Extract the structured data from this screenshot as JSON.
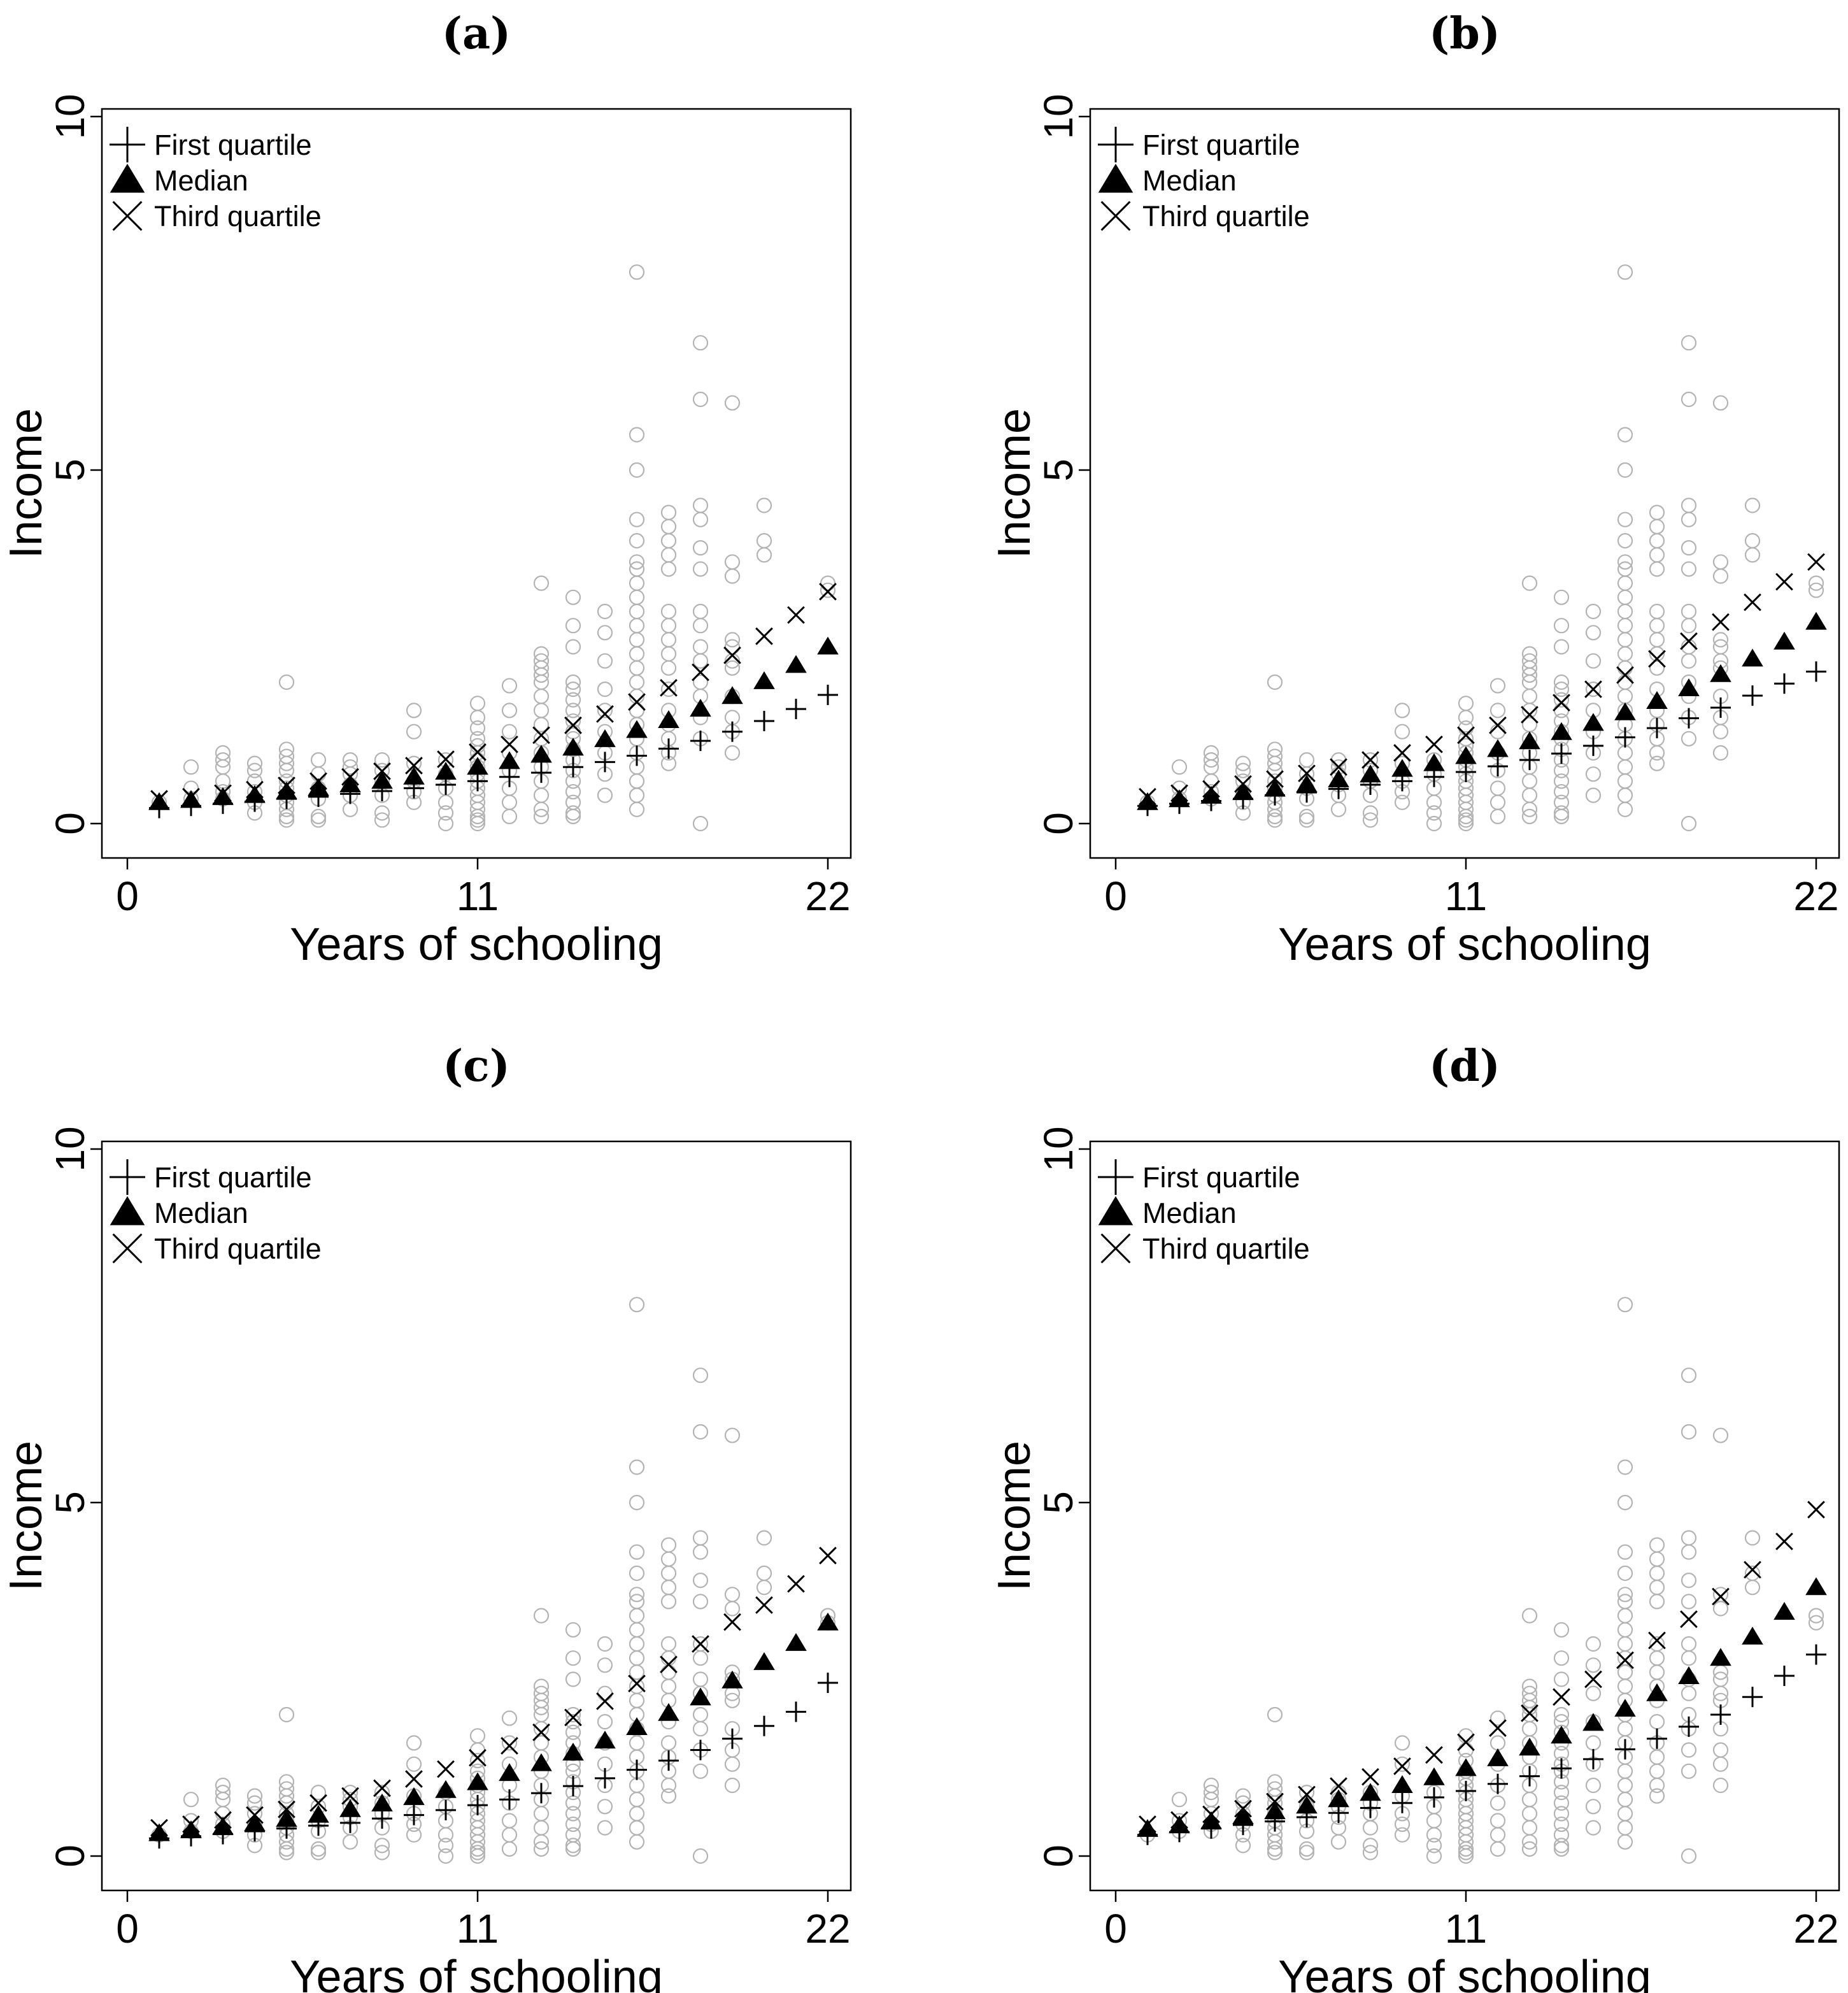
{
  "chart_data": {
    "type": "scatter",
    "xlabel": "Years of schooling",
    "ylabel": "Income",
    "xlim": [
      0,
      22
    ],
    "ylim": [
      0,
      10
    ],
    "xticks": [
      {
        "value": 0,
        "label": "0"
      },
      {
        "value": 11,
        "label": "11"
      },
      {
        "value": 22,
        "label": "22"
      }
    ],
    "yticks": [
      {
        "value": 0,
        "label": "0"
      },
      {
        "value": 5,
        "label": "5"
      },
      {
        "value": 10,
        "label": "10"
      }
    ],
    "legend": {
      "position": "top-left",
      "entries": [
        {
          "label": "First quartile",
          "marker": "plus"
        },
        {
          "label": "Median",
          "marker": "triangle"
        },
        {
          "label": "Third quartile",
          "marker": "cross"
        }
      ]
    },
    "observed": [
      {
        "x": 1,
        "y": [
          0.3
        ]
      },
      {
        "x": 2,
        "y": [
          0.8,
          0.5,
          0.35
        ]
      },
      {
        "x": 3,
        "y": [
          1.0,
          0.9,
          0.8,
          0.6,
          0.45,
          0.35
        ]
      },
      {
        "x": 4,
        "y": [
          0.85,
          0.75,
          0.6,
          0.45,
          0.3,
          0.15
        ]
      },
      {
        "x": 5,
        "y": [
          2.0,
          1.05,
          0.95,
          0.85,
          0.75,
          0.6,
          0.5,
          0.4,
          0.3,
          0.2,
          0.1,
          0.05
        ]
      },
      {
        "x": 6,
        "y": [
          0.9,
          0.7,
          0.5,
          0.35,
          0.1,
          0.05
        ]
      },
      {
        "x": 7,
        "y": [
          0.9,
          0.8,
          0.7,
          0.55,
          0.4,
          0.2
        ]
      },
      {
        "x": 8,
        "y": [
          0.9,
          0.75,
          0.6,
          0.4,
          0.15,
          0.05
        ]
      },
      {
        "x": 9,
        "y": [
          1.6,
          1.3,
          0.85,
          0.6,
          0.45,
          0.3
        ]
      },
      {
        "x": 10,
        "y": [
          0.9,
          0.7,
          0.5,
          0.3,
          0.15,
          0.0
        ]
      },
      {
        "x": 11,
        "y": [
          1.7,
          1.5,
          1.35,
          1.2,
          1.1,
          1.0,
          0.9,
          0.8,
          0.7,
          0.6,
          0.5,
          0.4,
          0.3,
          0.2,
          0.1,
          0.05,
          0.0
        ]
      },
      {
        "x": 12,
        "y": [
          1.95,
          1.6,
          1.3,
          1.0,
          0.75,
          0.5,
          0.3,
          0.1
        ]
      },
      {
        "x": 13,
        "y": [
          3.4,
          2.4,
          2.3,
          2.2,
          2.1,
          2.0,
          1.8,
          1.6,
          1.4,
          1.2,
          1.0,
          0.8,
          0.6,
          0.4,
          0.2,
          0.1
        ]
      },
      {
        "x": 14,
        "y": [
          3.2,
          2.8,
          2.5,
          2.0,
          1.9,
          1.75,
          1.6,
          1.45,
          1.3,
          1.2,
          1.05,
          0.9,
          0.75,
          0.6,
          0.45,
          0.3,
          0.15,
          0.1
        ]
      },
      {
        "x": 15,
        "y": [
          3.0,
          2.7,
          2.3,
          1.9,
          1.6,
          1.3,
          1.0,
          0.7,
          0.4
        ]
      },
      {
        "x": 16,
        "y": [
          7.8,
          5.5,
          5.0,
          4.3,
          4.0,
          3.7,
          3.6,
          3.4,
          3.2,
          3.0,
          2.8,
          2.6,
          2.4,
          2.2,
          2.0,
          1.8,
          1.6,
          1.4,
          1.2,
          1.0,
          0.8,
          0.6,
          0.4,
          0.2
        ]
      },
      {
        "x": 17,
        "y": [
          4.4,
          4.2,
          4.0,
          3.8,
          3.6,
          3.0,
          2.8,
          2.6,
          2.4,
          2.2,
          1.9,
          1.6,
          1.4,
          1.2,
          1.0,
          0.85
        ]
      },
      {
        "x": 18,
        "y": [
          6.8,
          6.0,
          4.5,
          4.3,
          3.9,
          3.6,
          3.0,
          2.8,
          2.5,
          2.3,
          2.0,
          1.8,
          1.5,
          1.2,
          0.0
        ]
      },
      {
        "x": 19,
        "y": [
          5.95,
          3.7,
          3.5,
          2.6,
          2.5,
          2.3,
          2.2,
          1.8,
          1.5,
          1.3,
          1.0
        ]
      },
      {
        "x": 20,
        "y": [
          4.5,
          4.0,
          3.8
        ]
      },
      {
        "x": 22,
        "y": [
          3.4,
          3.3
        ]
      }
    ],
    "panels": [
      {
        "title": "(a)",
        "x": [
          1,
          2,
          3,
          4,
          5,
          6,
          7,
          8,
          9,
          10,
          11,
          12,
          13,
          14,
          15,
          16,
          17,
          18,
          19,
          20,
          21,
          22
        ],
        "series": [
          {
            "name": "First quartile",
            "marker": "plus",
            "values": [
              0.22,
              0.25,
              0.28,
              0.31,
              0.35,
              0.38,
              0.42,
              0.46,
              0.5,
              0.55,
              0.6,
              0.66,
              0.72,
              0.8,
              0.87,
              0.96,
              1.06,
              1.17,
              1.3,
              1.45,
              1.62,
              1.82
            ]
          },
          {
            "name": "Median",
            "marker": "triangle",
            "values": [
              0.3,
              0.33,
              0.37,
              0.4,
              0.45,
              0.5,
              0.55,
              0.6,
              0.66,
              0.73,
              0.8,
              0.88,
              0.97,
              1.07,
              1.19,
              1.32,
              1.46,
              1.62,
              1.8,
              2.01,
              2.24,
              2.5
            ]
          },
          {
            "name": "Third quartile",
            "marker": "cross",
            "values": [
              0.35,
              0.38,
              0.43,
              0.48,
              0.54,
              0.6,
              0.66,
              0.74,
              0.82,
              0.91,
              1.01,
              1.12,
              1.25,
              1.39,
              1.55,
              1.72,
              1.92,
              2.14,
              2.38,
              2.65,
              2.95,
              3.28
            ]
          }
        ]
      },
      {
        "title": "(b)",
        "x": [
          1,
          2,
          3,
          4,
          5,
          6,
          7,
          8,
          9,
          10,
          11,
          12,
          13,
          14,
          15,
          16,
          17,
          18,
          19,
          20,
          21,
          22
        ],
        "series": [
          {
            "name": "First quartile",
            "marker": "plus",
            "values": [
              0.25,
              0.28,
              0.32,
              0.35,
              0.4,
              0.44,
              0.49,
              0.55,
              0.6,
              0.66,
              0.73,
              0.81,
              0.9,
              0.99,
              1.1,
              1.22,
              1.35,
              1.49,
              1.64,
              1.81,
              1.98,
              2.15
            ]
          },
          {
            "name": "Median",
            "marker": "triangle",
            "values": [
              0.3,
              0.34,
              0.39,
              0.44,
              0.49,
              0.55,
              0.62,
              0.69,
              0.77,
              0.85,
              0.95,
              1.05,
              1.16,
              1.29,
              1.42,
              1.57,
              1.73,
              1.91,
              2.11,
              2.33,
              2.57,
              2.85
            ]
          },
          {
            "name": "Third quartile",
            "marker": "cross",
            "values": [
              0.38,
              0.43,
              0.49,
              0.56,
              0.63,
              0.71,
              0.8,
              0.9,
              1.0,
              1.12,
              1.25,
              1.39,
              1.54,
              1.71,
              1.9,
              2.1,
              2.33,
              2.58,
              2.85,
              3.13,
              3.42,
              3.7
            ]
          }
        ]
      },
      {
        "title": "(c)",
        "x": [
          1,
          2,
          3,
          4,
          5,
          6,
          7,
          8,
          9,
          10,
          11,
          12,
          13,
          14,
          15,
          16,
          17,
          18,
          19,
          20,
          21,
          22
        ],
        "series": [
          {
            "name": "First quartile",
            "marker": "plus",
            "values": [
              0.25,
              0.28,
              0.31,
              0.35,
              0.39,
              0.43,
              0.47,
              0.53,
              0.58,
              0.65,
              0.72,
              0.8,
              0.89,
              0.99,
              1.1,
              1.22,
              1.35,
              1.5,
              1.66,
              1.84,
              2.04,
              2.45
            ]
          },
          {
            "name": "Median",
            "marker": "triangle",
            "values": [
              0.32,
              0.36,
              0.41,
              0.46,
              0.52,
              0.58,
              0.66,
              0.74,
              0.83,
              0.93,
              1.04,
              1.17,
              1.31,
              1.46,
              1.63,
              1.82,
              2.02,
              2.24,
              2.48,
              2.74,
              3.01,
              3.3
            ]
          },
          {
            "name": "Third quartile",
            "marker": "cross",
            "values": [
              0.4,
              0.45,
              0.51,
              0.58,
              0.66,
              0.75,
              0.85,
              0.96,
              1.09,
              1.23,
              1.39,
              1.56,
              1.75,
              1.96,
              2.19,
              2.44,
              2.71,
              3.0,
              3.31,
              3.55,
              3.85,
              4.25
            ]
          }
        ]
      },
      {
        "title": "(d)",
        "x": [
          1,
          2,
          3,
          4,
          5,
          6,
          7,
          8,
          9,
          10,
          11,
          12,
          13,
          14,
          15,
          16,
          17,
          18,
          19,
          20,
          21,
          22
        ],
        "series": [
          {
            "name": "First quartile",
            "marker": "plus",
            "values": [
              0.3,
              0.34,
              0.39,
              0.44,
              0.49,
              0.55,
              0.61,
              0.68,
              0.75,
              0.83,
              0.92,
              1.02,
              1.13,
              1.24,
              1.37,
              1.51,
              1.66,
              1.83,
              2.0,
              2.25,
              2.55,
              2.85
            ]
          },
          {
            "name": "Median",
            "marker": "triangle",
            "values": [
              0.38,
              0.43,
              0.49,
              0.56,
              0.63,
              0.71,
              0.8,
              0.89,
              1.0,
              1.11,
              1.24,
              1.38,
              1.53,
              1.7,
              1.88,
              2.08,
              2.3,
              2.54,
              2.8,
              3.1,
              3.45,
              3.8
            ]
          },
          {
            "name": "Third quartile",
            "marker": "cross",
            "values": [
              0.45,
              0.51,
              0.59,
              0.67,
              0.77,
              0.87,
              0.99,
              1.12,
              1.27,
              1.43,
              1.61,
              1.81,
              2.02,
              2.25,
              2.5,
              2.77,
              3.05,
              3.35,
              3.67,
              4.05,
              4.45,
              4.9
            ]
          }
        ]
      }
    ]
  },
  "colors": {
    "observed": "#b3b3b3",
    "markers": "#000000",
    "background": "#ffffff"
  }
}
